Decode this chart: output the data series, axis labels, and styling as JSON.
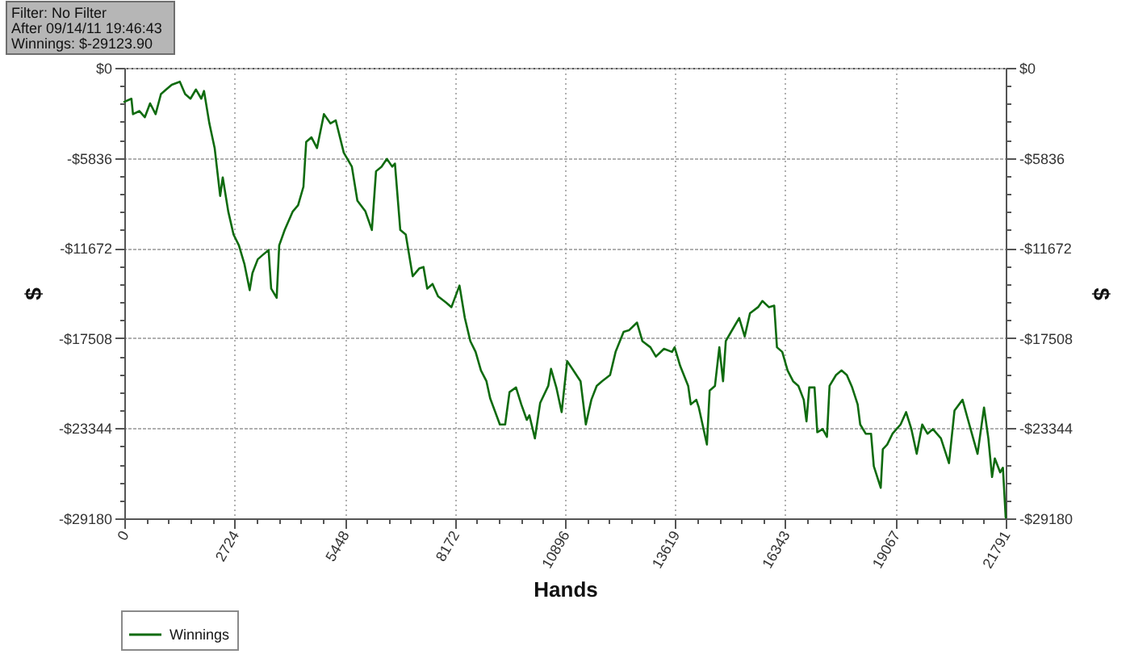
{
  "chart_data": {
    "type": "line",
    "xlabel": "Hands",
    "ylabel": "$",
    "y2label": "$",
    "annotations": [
      "Filter: No Filter",
      "After 09/14/11 19:46:43",
      "Winnings: $-29123.90"
    ],
    "x": [
      0,
      176,
      215,
      375,
      507,
      638,
      774,
      906,
      1037,
      1173,
      1373,
      1504,
      1636,
      1772,
      1903,
      1971,
      2103,
      2234,
      2370,
      2434,
      2570,
      2701,
      2833,
      2969,
      3100,
      3168,
      3300,
      3431,
      3567,
      3631,
      3767,
      3830,
      3966,
      4166,
      4297,
      4429,
      4497,
      4628,
      4764,
      4936,
      5095,
      5227,
      5426,
      5626,
      5762,
      5961,
      6121,
      6224,
      6360,
      6492,
      6623,
      6691,
      6823,
      6959,
      7022,
      7130,
      7290,
      7397,
      7489,
      7621,
      7757,
      7956,
      8088,
      8287,
      8419,
      8555,
      8686,
      8818,
      8954,
      9045,
      9285,
      9416,
      9524,
      9684,
      9815,
      9951,
      10015,
      10151,
      10282,
      10482,
      10550,
      10681,
      10813,
      10949,
      11080,
      11280,
      11411,
      11547,
      11679,
      11810,
      12010,
      12146,
      12345,
      12477,
      12676,
      12808,
      13007,
      13143,
      13343,
      13542,
      13606,
      13742,
      13941,
      14005,
      14141,
      14204,
      14404,
      14472,
      14603,
      14711,
      14803,
      14871,
      15002,
      15202,
      15338,
      15469,
      15669,
      15776,
      15936,
      16068,
      16136,
      16267,
      16399,
      16535,
      16666,
      16798,
      16866,
      16934,
      17065,
      17133,
      17265,
      17372,
      17436,
      17596,
      17732,
      17863,
      17995,
      18131,
      18194,
      18330,
      18462,
      18530,
      18701,
      18753,
      18861,
      18992,
      19192,
      19328,
      19459,
      19591,
      19727,
      19858,
      19990,
      20189,
      20389,
      20525,
      20724,
      20828,
      20987,
      21095,
      21255,
      21362,
      21454,
      21522,
      21654,
      21722,
      21791
    ],
    "series": [
      {
        "name": "Winnings",
        "color": "#0f6b0f",
        "values": [
          -2200,
          -2000,
          -3000,
          -2800,
          -3200,
          -2300,
          -3000,
          -1700,
          -1400,
          -1100,
          -900,
          -1700,
          -2000,
          -1400,
          -2000,
          -1500,
          -3600,
          -5200,
          -8300,
          -7100,
          -9300,
          -10800,
          -11500,
          -12700,
          -14400,
          -13300,
          -12400,
          -12100,
          -11800,
          -14300,
          -14900,
          -11500,
          -10500,
          -9300,
          -8900,
          -7700,
          -4800,
          -4500,
          -5200,
          -3000,
          -3600,
          -3400,
          -5500,
          -6400,
          -8600,
          -9300,
          -10500,
          -6700,
          -6400,
          -5900,
          -6400,
          -6200,
          -10500,
          -10800,
          -11800,
          -13500,
          -13000,
          -12900,
          -14300,
          -14000,
          -14800,
          -15200,
          -15500,
          -14100,
          -16200,
          -17700,
          -18400,
          -19600,
          -20300,
          -21400,
          -23100,
          -23100,
          -21000,
          -20700,
          -21800,
          -22800,
          -22500,
          -24000,
          -21700,
          -20600,
          -19500,
          -20700,
          -22300,
          -19000,
          -19500,
          -20300,
          -23100,
          -21500,
          -20600,
          -20300,
          -19900,
          -18400,
          -17100,
          -17000,
          -16500,
          -17700,
          -18100,
          -18700,
          -18200,
          -18400,
          -18100,
          -19300,
          -20600,
          -21800,
          -21500,
          -22000,
          -24400,
          -20900,
          -20600,
          -18100,
          -20300,
          -17700,
          -17100,
          -16200,
          -17400,
          -15900,
          -15500,
          -15100,
          -15500,
          -15400,
          -18100,
          -18400,
          -19600,
          -20300,
          -20600,
          -21500,
          -22900,
          -20700,
          -20700,
          -23600,
          -23400,
          -23900,
          -20600,
          -19900,
          -19600,
          -19900,
          -20700,
          -21800,
          -23100,
          -23700,
          -23700,
          -25800,
          -27200,
          -24700,
          -24400,
          -23700,
          -23100,
          -22300,
          -23400,
          -25000,
          -23100,
          -23700,
          -23400,
          -24000,
          -25600,
          -22200,
          -21500,
          -22500,
          -24000,
          -25000,
          -22000,
          -24000,
          -26500,
          -25300,
          -26200,
          -25900,
          -29123.9
        ]
      }
    ],
    "xlim": [
      0,
      21791
    ],
    "xticks": [
      0,
      {
        "value": 544.8,
        "label": null
      },
      {
        "value": 1089.6,
        "label": null
      },
      {
        "value": 1634.4,
        "label": null
      },
      {
        "value": 2179.2,
        "label": null
      },
      2724,
      {
        "value": 3268.8,
        "label": null
      },
      {
        "value": 3813.6,
        "label": null
      },
      {
        "value": 4358.4,
        "label": null
      },
      {
        "value": 4903.2,
        "label": null
      },
      5448,
      {
        "value": 5992.8,
        "label": null
      },
      {
        "value": 6537.6,
        "label": null
      },
      {
        "value": 7082.4,
        "label": null
      },
      {
        "value": 7627.2,
        "label": null
      },
      8172,
      {
        "value": 8716.8,
        "label": null
      },
      {
        "value": 9261.6,
        "label": null
      },
      {
        "value": 9806.4,
        "label": null
      },
      {
        "value": 10351.2,
        "label": null
      },
      10896,
      {
        "value": 11440.8,
        "label": null
      },
      {
        "value": 11985.6,
        "label": null
      },
      {
        "value": 12530.4,
        "label": null
      },
      {
        "value": 13075.2,
        "label": null
      },
      13619,
      {
        "value": 14164.8,
        "label": null
      },
      {
        "value": 14709.6,
        "label": null
      },
      {
        "value": 15254.4,
        "label": null
      },
      {
        "value": 15799.2,
        "label": null
      },
      16343,
      {
        "value": 16888.8,
        "label": null
      },
      {
        "value": 17433.6,
        "label": null
      },
      {
        "value": 17978.4,
        "label": null
      },
      {
        "value": 18523.2,
        "label": null
      },
      19067,
      {
        "value": 19612.8,
        "label": null
      },
      {
        "value": 20157.6,
        "label": null
      },
      {
        "value": 20702.4,
        "label": null
      },
      {
        "value": 21247.2,
        "label": null
      },
      21791
    ],
    "ylim": [
      -29180,
      0
    ],
    "yticks": [
      {
        "value": -29180,
        "label": "-$29180"
      },
      {
        "value": -28012.8,
        "label": null
      },
      {
        "value": -26845.6,
        "label": null
      },
      {
        "value": -25678.4,
        "label": null
      },
      {
        "value": -24511.2,
        "label": null
      },
      {
        "value": -23344,
        "label": "-$23344"
      },
      {
        "value": -22176.8,
        "label": null
      },
      {
        "value": -21009.6,
        "label": null
      },
      {
        "value": -19842.4,
        "label": null
      },
      {
        "value": -18675.2,
        "label": null
      },
      {
        "value": -17508,
        "label": "-$17508"
      },
      {
        "value": -16340.8,
        "label": null
      },
      {
        "value": -15173.6,
        "label": null
      },
      {
        "value": -14006.4,
        "label": null
      },
      {
        "value": -12839.2,
        "label": null
      },
      {
        "value": -11672,
        "label": "-$11672"
      },
      {
        "value": -10504.8,
        "label": null
      },
      {
        "value": -9337.6,
        "label": null
      },
      {
        "value": -8170.4,
        "label": null
      },
      {
        "value": -7003.2,
        "label": null
      },
      {
        "value": -5836,
        "label": "-$5836"
      },
      {
        "value": -4668.8,
        "label": null
      },
      {
        "value": -3501.6,
        "label": null
      },
      {
        "value": -2334.4,
        "label": null
      },
      {
        "value": -1167.2,
        "label": null
      },
      {
        "value": 0,
        "label": "$0"
      }
    ],
    "y2lim": [
      -29180,
      0
    ],
    "y2ticks": [
      {
        "value": -29180,
        "label": "-$29180"
      },
      {
        "value": -28012.8,
        "label": null
      },
      {
        "value": -26845.6,
        "label": null
      },
      {
        "value": -25678.4,
        "label": null
      },
      {
        "value": -24511.2,
        "label": null
      },
      {
        "value": -23344,
        "label": "-$23344"
      },
      {
        "value": -22176.8,
        "label": null
      },
      {
        "value": -21009.6,
        "label": null
      },
      {
        "value": -19842.4,
        "label": null
      },
      {
        "value": -18675.2,
        "label": null
      },
      {
        "value": -17508,
        "label": "-$17508"
      },
      {
        "value": -16340.8,
        "label": null
      },
      {
        "value": -15173.6,
        "label": null
      },
      {
        "value": -14006.4,
        "label": null
      },
      {
        "value": -12839.2,
        "label": null
      },
      {
        "value": -11672,
        "label": "-$11672"
      },
      {
        "value": -10504.8,
        "label": null
      },
      {
        "value": -9337.6,
        "label": null
      },
      {
        "value": -8170.4,
        "label": null
      },
      {
        "value": -7003.2,
        "label": null
      },
      {
        "value": -5836,
        "label": "-$5836"
      },
      {
        "value": -4668.8,
        "label": null
      },
      {
        "value": -3501.6,
        "label": null
      },
      {
        "value": -2334.4,
        "label": null
      },
      {
        "value": -1167.2,
        "label": null
      },
      {
        "value": 0,
        "label": "$0"
      }
    ],
    "grid": true,
    "legend": "bottom left"
  }
}
